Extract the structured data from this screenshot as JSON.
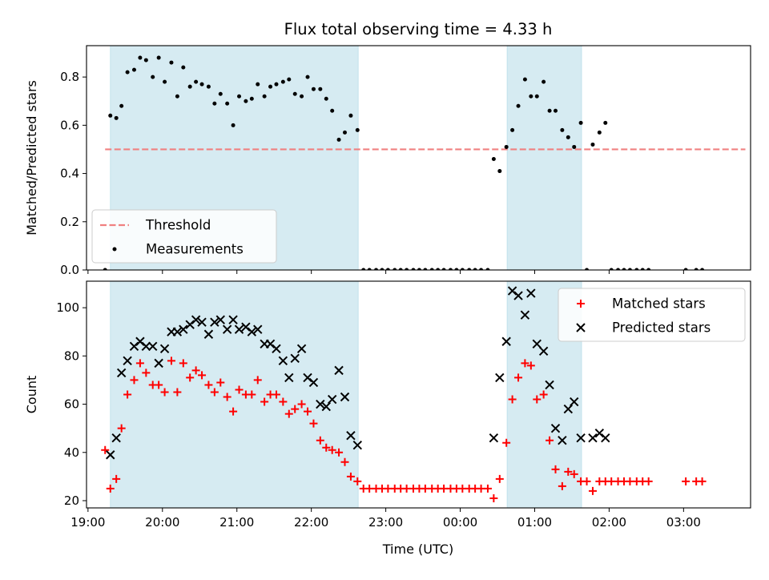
{
  "figure": {
    "title": "Flux total observing time = 4.33 h",
    "xlabel": "Time (UTC)",
    "xticks": [
      "19:00",
      "20:00",
      "21:00",
      "22:00",
      "23:00",
      "00:00",
      "01:00",
      "02:00",
      "03:00"
    ]
  },
  "colors": {
    "shade": "#add8e6",
    "threshold": "#f08080",
    "measurements": "#000000",
    "matched": "#ff0000",
    "predicted": "#000000"
  },
  "chart_data": [
    {
      "type": "scatter",
      "ylabel": "Matched/Predicted stars",
      "ylim": [
        0,
        0.93
      ],
      "xlim_hours": [
        18.98,
        27.9
      ],
      "yticks": [
        "0.0",
        "0.2",
        "0.4",
        "0.6",
        "0.8"
      ],
      "shaded_intervals_hours": [
        [
          19.3,
          22.63
        ],
        [
          24.63,
          25.63
        ]
      ],
      "legend": {
        "placement": "lower-left",
        "entries": [
          "Threshold",
          "Measurements"
        ]
      },
      "threshold": {
        "name": "Threshold",
        "y": 0.5,
        "x_hours": [
          19.23,
          27.83
        ]
      },
      "series": [
        {
          "name": "Measurements",
          "x_hours": [
            19.23,
            19.3,
            19.38,
            19.45,
            19.53,
            19.62,
            19.7,
            19.78,
            19.87,
            19.95,
            20.03,
            20.12,
            20.2,
            20.28,
            20.37,
            20.45,
            20.53,
            20.62,
            20.7,
            20.78,
            20.87,
            20.95,
            21.03,
            21.12,
            21.2,
            21.28,
            21.37,
            21.45,
            21.53,
            21.62,
            21.7,
            21.78,
            21.87,
            21.95,
            22.03,
            22.12,
            22.2,
            22.28,
            22.37,
            22.45,
            22.53,
            22.62,
            22.7,
            22.78,
            22.87,
            22.95,
            23.03,
            23.12,
            23.2,
            23.28,
            23.37,
            23.45,
            23.53,
            23.62,
            23.7,
            23.78,
            23.87,
            23.95,
            24.03,
            24.12,
            24.2,
            24.28,
            24.37,
            24.45,
            24.53,
            24.62,
            24.7,
            24.78,
            24.87,
            24.95,
            25.03,
            25.12,
            25.2,
            25.28,
            25.37,
            25.45,
            25.53,
            25.62,
            25.7,
            25.78,
            25.87,
            25.95,
            26.03,
            26.12,
            26.2,
            26.28,
            26.37,
            26.45,
            26.53,
            27.03,
            27.17,
            27.25
          ],
          "y": [
            0.0,
            0.64,
            0.63,
            0.68,
            0.82,
            0.83,
            0.88,
            0.87,
            0.8,
            0.88,
            0.78,
            0.86,
            0.72,
            0.84,
            0.76,
            0.78,
            0.77,
            0.76,
            0.69,
            0.73,
            0.69,
            0.6,
            0.72,
            0.7,
            0.71,
            0.77,
            0.72,
            0.76,
            0.77,
            0.78,
            0.79,
            0.73,
            0.72,
            0.8,
            0.75,
            0.75,
            0.71,
            0.66,
            0.54,
            0.57,
            0.64,
            0.58,
            0.0,
            0.0,
            0.0,
            0.0,
            0.0,
            0.0,
            0.0,
            0.0,
            0.0,
            0.0,
            0.0,
            0.0,
            0.0,
            0.0,
            0.0,
            0.0,
            0.0,
            0.0,
            0.0,
            0.0,
            0.0,
            0.46,
            0.41,
            0.51,
            0.58,
            0.68,
            0.79,
            0.72,
            0.72,
            0.78,
            0.66,
            0.66,
            0.58,
            0.55,
            0.51,
            0.61,
            0.0,
            0.52,
            0.57,
            0.61,
            0.0,
            0.0,
            0.0,
            0.0,
            0.0,
            0.0,
            0.0,
            0.0,
            0.0,
            0.0
          ]
        }
      ]
    },
    {
      "type": "scatter",
      "ylabel": "Count",
      "ylim": [
        17,
        111
      ],
      "xlim_hours": [
        18.98,
        27.9
      ],
      "yticks": [
        "20",
        "40",
        "60",
        "80",
        "100"
      ],
      "shaded_intervals_hours": [
        [
          19.3,
          22.63
        ],
        [
          24.63,
          25.63
        ]
      ],
      "legend": {
        "placement": "upper-right",
        "entries": [
          "Matched stars",
          "Predicted stars"
        ]
      },
      "series": [
        {
          "name": "Matched stars",
          "marker": "plus",
          "x_hours": [
            19.23,
            19.3,
            19.38,
            19.45,
            19.53,
            19.62,
            19.7,
            19.78,
            19.87,
            19.95,
            20.03,
            20.12,
            20.2,
            20.28,
            20.37,
            20.45,
            20.53,
            20.62,
            20.7,
            20.78,
            20.87,
            20.95,
            21.03,
            21.12,
            21.2,
            21.28,
            21.37,
            21.45,
            21.53,
            21.62,
            21.7,
            21.78,
            21.87,
            21.95,
            22.03,
            22.12,
            22.2,
            22.28,
            22.37,
            22.45,
            22.53,
            22.62,
            22.7,
            22.78,
            22.87,
            22.95,
            23.03,
            23.12,
            23.2,
            23.28,
            23.37,
            23.45,
            23.53,
            23.62,
            23.7,
            23.78,
            23.87,
            23.95,
            24.03,
            24.12,
            24.2,
            24.28,
            24.37,
            24.45,
            24.53,
            24.62,
            24.7,
            24.78,
            24.87,
            24.95,
            25.03,
            25.12,
            25.2,
            25.28,
            25.37,
            25.45,
            25.53,
            25.62,
            25.7,
            25.78,
            25.87,
            25.95,
            26.03,
            26.12,
            26.2,
            26.28,
            26.37,
            26.45,
            26.53,
            27.03,
            27.17,
            27.25
          ],
          "y": [
            41,
            25,
            29,
            50,
            64,
            70,
            77,
            73,
            68,
            68,
            65,
            78,
            65,
            77,
            71,
            74,
            72,
            68,
            65,
            69,
            63,
            57,
            66,
            64,
            64,
            70,
            61,
            64,
            64,
            61,
            56,
            58,
            60,
            57,
            52,
            45,
            42,
            41,
            40,
            36,
            30,
            28,
            25,
            25,
            25,
            25,
            25,
            25,
            25,
            25,
            25,
            25,
            25,
            25,
            25,
            25,
            25,
            25,
            25,
            25,
            25,
            25,
            25,
            21,
            29,
            44,
            62,
            71,
            77,
            76,
            62,
            64,
            45,
            33,
            26,
            32,
            31,
            28,
            28,
            24,
            28,
            28,
            28,
            28,
            28,
            28,
            28,
            28,
            28,
            28,
            28,
            28
          ]
        },
        {
          "name": "Predicted stars",
          "marker": "x",
          "x_hours": [
            19.3,
            19.38,
            19.45,
            19.53,
            19.62,
            19.7,
            19.78,
            19.87,
            19.95,
            20.03,
            20.12,
            20.2,
            20.28,
            20.37,
            20.45,
            20.53,
            20.62,
            20.7,
            20.78,
            20.87,
            20.95,
            21.03,
            21.12,
            21.2,
            21.28,
            21.37,
            21.45,
            21.53,
            21.62,
            21.7,
            21.78,
            21.87,
            21.95,
            22.03,
            22.12,
            22.2,
            22.28,
            22.37,
            22.45,
            22.53,
            22.62,
            24.45,
            24.53,
            24.62,
            24.7,
            24.78,
            24.87,
            24.95,
            25.03,
            25.12,
            25.2,
            25.28,
            25.37,
            25.45,
            25.53,
            25.62,
            25.78,
            25.87,
            25.95
          ],
          "y": [
            39,
            46,
            73,
            78,
            84,
            86,
            84,
            84,
            77,
            83,
            90,
            90,
            91,
            93,
            95,
            94,
            89,
            94,
            95,
            91,
            95,
            91,
            92,
            90,
            91,
            85,
            85,
            83,
            78,
            71,
            79,
            83,
            71,
            69,
            60,
            59,
            62,
            74,
            63,
            47,
            43,
            46,
            71,
            86,
            107,
            105,
            97,
            106,
            85,
            82,
            68,
            50,
            45,
            58,
            61,
            46,
            46,
            48,
            46
          ]
        }
      ]
    }
  ]
}
